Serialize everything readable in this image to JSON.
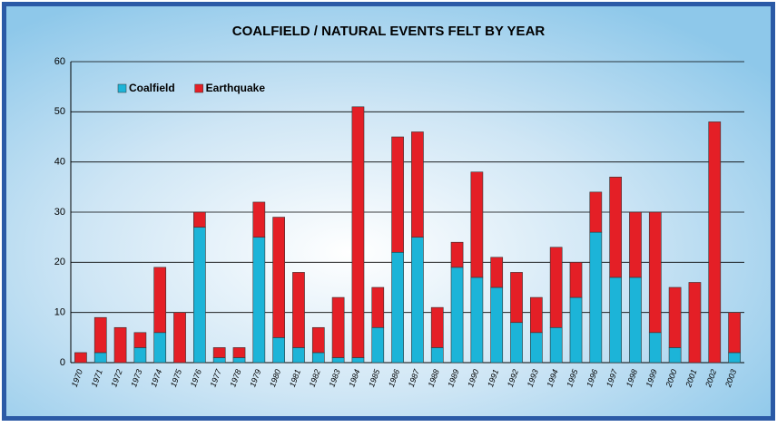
{
  "chart_data": {
    "type": "bar",
    "stacked": true,
    "title": "COALFIELD / NATURAL EVENTS FELT BY YEAR",
    "categories": [
      "1970",
      "1971",
      "1972",
      "1973",
      "1974",
      "1975",
      "1976",
      "1977",
      "1978",
      "1979",
      "1980",
      "1981",
      "1982",
      "1983",
      "1984",
      "1985",
      "1986",
      "1987",
      "1988",
      "1989",
      "1990",
      "1991",
      "1992",
      "1993",
      "1994",
      "1995",
      "1996",
      "1997",
      "1998",
      "1999",
      "2000",
      "2001",
      "2002",
      "2003"
    ],
    "series": [
      {
        "name": "Coalfield",
        "color": "#1cb4d8",
        "values": [
          0,
          2,
          0,
          3,
          6,
          0,
          27,
          1,
          1,
          25,
          5,
          3,
          2,
          1,
          1,
          7,
          22,
          25,
          3,
          19,
          17,
          15,
          8,
          6,
          7,
          13,
          26,
          17,
          17,
          6,
          3,
          0,
          0,
          2
        ]
      },
      {
        "name": "Earthquake",
        "color": "#e41f26",
        "values": [
          2,
          7,
          7,
          3,
          13,
          10,
          3,
          2,
          2,
          7,
          24,
          15,
          5,
          12,
          50,
          8,
          23,
          21,
          8,
          5,
          21,
          6,
          10,
          7,
          16,
          7,
          8,
          20,
          13,
          24,
          12,
          16,
          48,
          8
        ]
      }
    ],
    "ylim": [
      0,
      60
    ],
    "yticks": [
      0,
      10,
      20,
      30,
      40,
      50,
      60
    ],
    "grid": true,
    "legend": "top-left"
  }
}
